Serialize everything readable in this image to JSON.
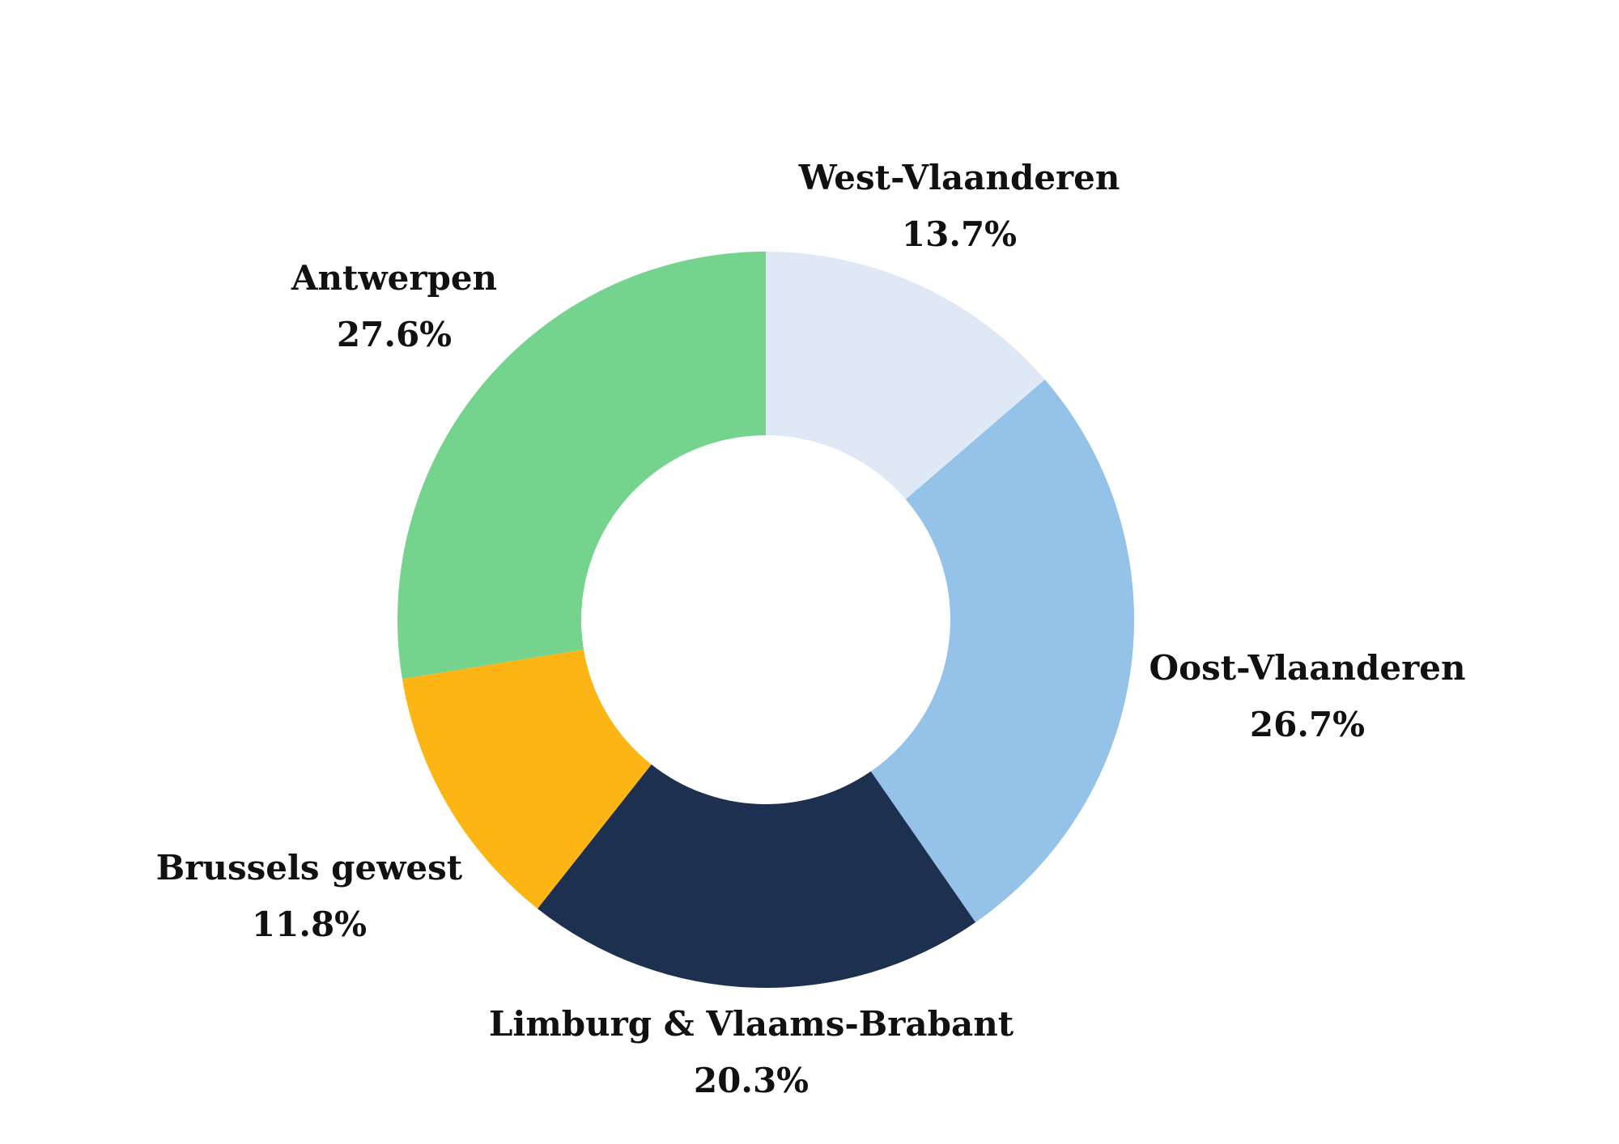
{
  "chart_data": {
    "type": "pie",
    "variant": "donut",
    "start_angle": "top",
    "direction": "clockwise",
    "slices": [
      {
        "label": "West-Vlaanderen",
        "value": 13.7,
        "display": "13.7%",
        "color": "#DFE9F6"
      },
      {
        "label": "Oost-Vlaanderen",
        "value": 26.7,
        "display": "26.7%",
        "color": "#94C2E8"
      },
      {
        "label": "Limburg & Vlaams-Brabant",
        "value": 20.3,
        "display": "20.3%",
        "color": "#1D3050"
      },
      {
        "label": "Brussels gewest",
        "value": 11.8,
        "display": "11.8%",
        "color": "#FDB515"
      },
      {
        "label": "Antwerpen",
        "value": 27.6,
        "display": "27.6%",
        "color": "#74D38D"
      }
    ]
  }
}
